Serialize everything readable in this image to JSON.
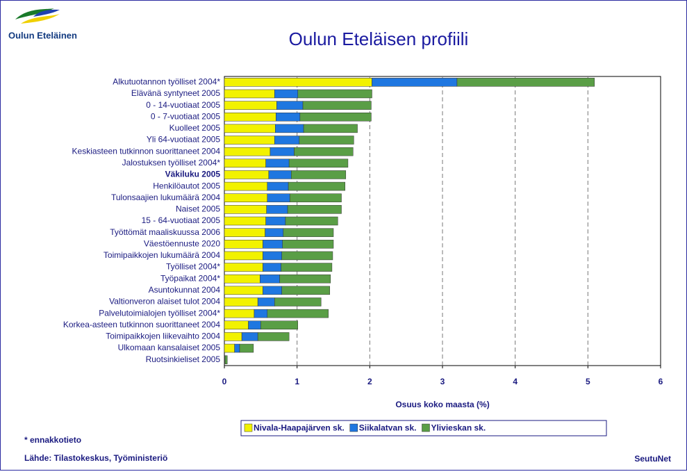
{
  "logo_text": "Oulun Eteläinen",
  "chart_data": {
    "type": "stacked-barh",
    "title": "Oulun Eteläisen profiili",
    "xlabel": "Osuus koko maasta (%)",
    "categories": [
      "Alkutuotannon työlliset 2004*",
      "Elävänä syntyneet 2005",
      "0 - 14-vuotiaat 2005",
      "0 - 7-vuotiaat 2005",
      "Kuolleet 2005",
      "Yli 64-vuotiaat 2005",
      "Keskiasteen tutkinnon suorittaneet 2004",
      "Jalostuksen työlliset 2004*",
      "Väkiluku 2005",
      "Henkilöautot 2005",
      "Tulonsaajien lukumäärä 2004",
      "Naiset 2005",
      "15 - 64-vuotiaat 2005",
      "Työttömät maaliskuussa 2006",
      "Väestöennuste 2020",
      "Toimipaikkojen lukumäärä 2004",
      "Työlliset 2004*",
      "Työpaikat 2004*",
      "Asuntokunnat 2004",
      "Valtionveron alaiset tulot 2004",
      "Palvelutoimialojen työlliset 2004*",
      "Korkea-asteen tutkinnon suorittaneet 2004",
      "Toimipaikkojen liikevaihto 2004",
      "Ulkomaan kansalaiset 2005",
      "Ruotsinkieliset 2005"
    ],
    "emphasized_category_index": 8,
    "series": [
      {
        "name": "Nivala-Haapajärven sk.",
        "color": "#f2f200",
        "values": [
          2.03,
          0.69,
          0.72,
          0.71,
          0.7,
          0.69,
          0.63,
          0.57,
          0.61,
          0.59,
          0.59,
          0.58,
          0.57,
          0.56,
          0.53,
          0.53,
          0.53,
          0.49,
          0.53,
          0.46,
          0.41,
          0.33,
          0.24,
          0.14,
          0.005
        ]
      },
      {
        "name": "Siikalatvan sk.",
        "color": "#1f77e0",
        "values": [
          1.17,
          0.32,
          0.36,
          0.33,
          0.39,
          0.34,
          0.33,
          0.32,
          0.31,
          0.29,
          0.31,
          0.29,
          0.27,
          0.25,
          0.27,
          0.26,
          0.25,
          0.27,
          0.26,
          0.23,
          0.18,
          0.17,
          0.22,
          0.07,
          0.005
        ]
      },
      {
        "name": "Ylivieskan sk.",
        "color": "#5a9e46",
        "values": [
          1.89,
          1.02,
          0.94,
          0.98,
          0.74,
          0.75,
          0.81,
          0.81,
          0.75,
          0.78,
          0.71,
          0.74,
          0.72,
          0.69,
          0.7,
          0.7,
          0.7,
          0.7,
          0.66,
          0.64,
          0.84,
          0.51,
          0.43,
          0.19,
          0.03
        ]
      }
    ],
    "xlim": [
      0,
      6
    ],
    "xticks": [
      0,
      1,
      2,
      3,
      4,
      5,
      6
    ],
    "grid": true,
    "note": "* ennakkotieto",
    "source": "Lähde: Tilastokeskus, Työministeriö",
    "brand": "SeutuNet"
  }
}
